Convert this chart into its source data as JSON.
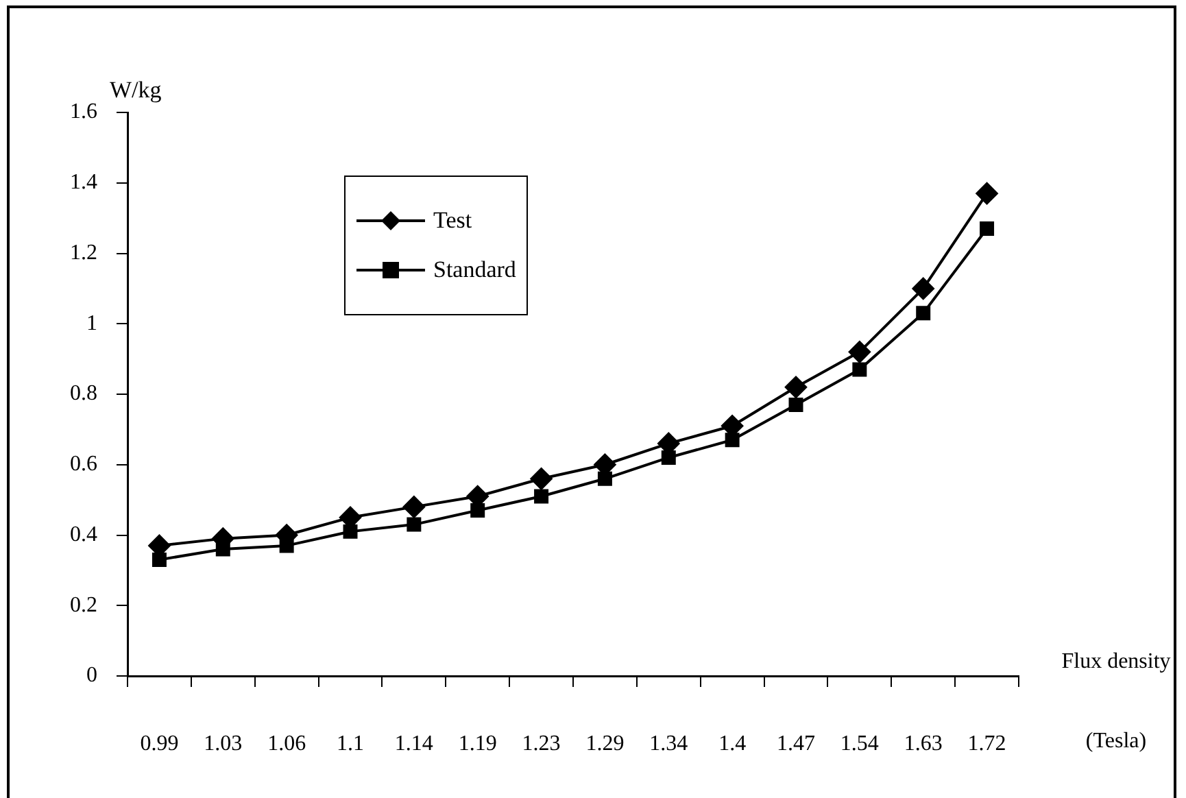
{
  "chart_data": {
    "type": "line",
    "xlabel": "Flux density (Tesla)",
    "ylabel": "W/kg",
    "categories": [
      "0.99",
      "1.03",
      "1.06",
      "1.1",
      "1.14",
      "1.19",
      "1.23",
      "1.29",
      "1.34",
      "1.4",
      "1.47",
      "1.54",
      "1.63",
      "1.72"
    ],
    "series": [
      {
        "name": "Test",
        "color": "#000000",
        "marker": "diamond",
        "values": [
          0.37,
          0.39,
          0.4,
          0.45,
          0.48,
          0.51,
          0.56,
          0.6,
          0.66,
          0.71,
          0.82,
          0.92,
          1.1,
          1.37
        ]
      },
      {
        "name": "Standard",
        "color": "#000000",
        "marker": "square",
        "values": [
          0.33,
          0.36,
          0.37,
          0.41,
          0.43,
          0.47,
          0.51,
          0.56,
          0.62,
          0.67,
          0.77,
          0.87,
          1.03,
          1.27
        ]
      }
    ],
    "ylim": [
      0,
      1.6
    ],
    "yticks": [
      0,
      0.2,
      0.4,
      0.6,
      0.8,
      1,
      1.2,
      1.4,
      1.6
    ],
    "grid": false,
    "legend": "top left",
    "line_style": "solid"
  }
}
